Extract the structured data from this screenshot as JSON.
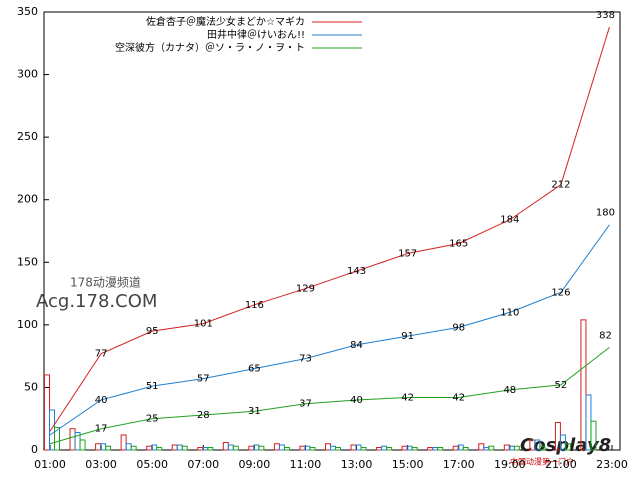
{
  "chart_data": {
    "type": "line",
    "xlim": [
      1,
      23
    ],
    "ylim": [
      0,
      350
    ],
    "xticks": [
      {
        "value": 1,
        "label": "01:00"
      },
      {
        "value": 3,
        "label": "03:00"
      },
      {
        "value": 5,
        "label": "05:00"
      },
      {
        "value": 7,
        "label": "07:00"
      },
      {
        "value": 9,
        "label": "09:00"
      },
      {
        "value": 11,
        "label": "11:00"
      },
      {
        "value": 13,
        "label": "13:00"
      },
      {
        "value": 15,
        "label": "15:00"
      },
      {
        "value": 17,
        "label": "17:00"
      },
      {
        "value": 19,
        "label": "19:00"
      },
      {
        "value": 21,
        "label": "21:00"
      },
      {
        "value": 23,
        "label": "23:00"
      }
    ],
    "yticks": [
      0,
      50,
      100,
      150,
      200,
      250,
      300,
      350
    ],
    "legend": "top-right",
    "series": [
      {
        "name": "佐倉杏子＠魔法少女まどか☆マギカ",
        "color": "#d42020",
        "x": [
          1,
          3,
          5,
          7,
          9,
          11,
          13,
          15,
          17,
          19,
          21,
          22.9
        ],
        "values": [
          15,
          77,
          95,
          101,
          116,
          129,
          143,
          157,
          165,
          184,
          212,
          338
        ],
        "value_labels": [
          null,
          "77",
          "95",
          "101",
          "116",
          "129",
          "143",
          "157",
          "165",
          "184",
          "212",
          "338"
        ]
      },
      {
        "name": "田井中律＠けいおん!!",
        "color": "#2080d0",
        "x": [
          1,
          3,
          5,
          7,
          9,
          11,
          13,
          15,
          17,
          19,
          21,
          22.9
        ],
        "values": [
          12,
          40,
          51,
          57,
          65,
          73,
          84,
          91,
          98,
          110,
          126,
          180
        ],
        "value_labels": [
          null,
          "40",
          "51",
          "57",
          "65",
          "73",
          "84",
          "91",
          "98",
          "110",
          "126",
          "180"
        ]
      },
      {
        "name": "空深彼方（カナタ）＠ソ・ラ・ノ・ヲ・ト",
        "color": "#20a020",
        "x": [
          1,
          3,
          5,
          7,
          9,
          11,
          13,
          15,
          17,
          19,
          21,
          22.9
        ],
        "values": [
          5,
          17,
          25,
          28,
          31,
          37,
          40,
          42,
          42,
          48,
          52,
          82
        ],
        "value_labels": [
          null,
          "17",
          "25",
          "28",
          "31",
          "37",
          "40",
          "42",
          "42",
          "48",
          "52",
          "82"
        ]
      }
    ],
    "bar_x": [
      1,
      2,
      3,
      4,
      5,
      6,
      7,
      8,
      9,
      10,
      11,
      12,
      13,
      14,
      15,
      16,
      17,
      18,
      19,
      20,
      21,
      22
    ],
    "bar_series": [
      {
        "color": "#d42020",
        "values": [
          60,
          17,
          5,
          12,
          3,
          4,
          2,
          6,
          3,
          5,
          3,
          5,
          4,
          2,
          3,
          2,
          3,
          5,
          4,
          8,
          22,
          104
        ]
      },
      {
        "color": "#2080d0",
        "values": [
          32,
          14,
          5,
          5,
          4,
          4,
          2,
          4,
          4,
          4,
          3,
          3,
          4,
          3,
          3,
          2,
          4,
          2,
          3,
          8,
          12,
          44
        ]
      },
      {
        "color": "#20a020",
        "values": [
          18,
          8,
          3,
          3,
          2,
          3,
          2,
          3,
          3,
          2,
          2,
          2,
          2,
          2,
          2,
          2,
          2,
          3,
          3,
          3,
          5,
          23
        ]
      }
    ],
    "watermarks": [
      "178动漫频道",
      "Acg.178.COM",
      "Cosplay8",
      "中国动漫第一门户"
    ]
  }
}
